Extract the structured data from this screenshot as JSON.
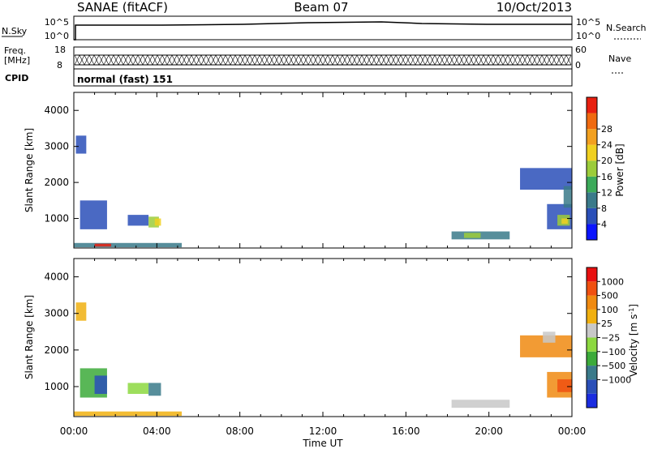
{
  "header": {
    "station": "SANAE (fitACF)",
    "beam": "Beam 07",
    "date": "10/Oct/2013"
  },
  "noise_panel": {
    "left_label": "N.Sky",
    "right_label": "N.Search",
    "left_ticks": [
      "10^5",
      "10^0"
    ],
    "right_ticks": [
      "10^5",
      "10^0"
    ]
  },
  "freq_panel": {
    "left_label_line1": "Freq.",
    "left_label_line2": "[MHz]",
    "right_label": "Nave",
    "left_ticks": [
      "18",
      "8"
    ],
    "right_ticks": [
      "60",
      "0"
    ]
  },
  "cpid_panel": {
    "label": "CPID",
    "value": "normal (fast) 151"
  },
  "chart_data": [
    {
      "type": "heatmap",
      "name": "power",
      "ylabel": "Slant Range [km]",
      "yticks": [
        1000,
        2000,
        3000,
        4000
      ],
      "ylim": [
        180,
        4500
      ],
      "xlim": [
        0,
        24
      ],
      "colorbar": {
        "label": "Power [dB]",
        "ticks": [
          "4",
          "8",
          "12",
          "16",
          "20",
          "24",
          "28"
        ],
        "colors": [
          "#0a14ff",
          "#2a4fb8",
          "#3a7a8a",
          "#3caa5a",
          "#9ccc3a",
          "#f0d020",
          "#f2a020",
          "#f06a10",
          "#e82010"
        ]
      },
      "regions": [
        {
          "t0": 0.1,
          "t1": 0.6,
          "r0": 2800,
          "r1": 3300,
          "color": "#2a4fb8"
        },
        {
          "t0": 0.3,
          "t1": 1.6,
          "r0": 700,
          "r1": 1500,
          "color": "#2a4fb8"
        },
        {
          "t0": 2.6,
          "t1": 3.6,
          "r0": 800,
          "r1": 1100,
          "color": "#2a4fb8"
        },
        {
          "t0": 3.6,
          "t1": 4.1,
          "r0": 750,
          "r1": 1050,
          "color": "#9ccc3a"
        },
        {
          "t0": 3.9,
          "t1": 4.2,
          "r0": 800,
          "r1": 1000,
          "color": "#f0d020"
        },
        {
          "t0": 0.0,
          "t1": 5.2,
          "r0": 200,
          "r1": 320,
          "color": "#3a7a8a"
        },
        {
          "t0": 1.0,
          "t1": 1.8,
          "r0": 220,
          "r1": 300,
          "color": "#e82010"
        },
        {
          "t0": 18.2,
          "t1": 21.0,
          "r0": 420,
          "r1": 640,
          "color": "#3a7a8a"
        },
        {
          "t0": 18.8,
          "t1": 19.6,
          "r0": 460,
          "r1": 600,
          "color": "#9ccc3a"
        },
        {
          "t0": 21.5,
          "t1": 24.0,
          "r0": 1800,
          "r1": 2400,
          "color": "#2a4fb8"
        },
        {
          "t0": 22.8,
          "t1": 24.0,
          "r0": 700,
          "r1": 1400,
          "color": "#2a4fb8"
        },
        {
          "t0": 23.3,
          "t1": 23.9,
          "r0": 800,
          "r1": 1100,
          "color": "#9ccc3a"
        },
        {
          "t0": 23.5,
          "t1": 23.8,
          "r0": 850,
          "r1": 1000,
          "color": "#f0d020"
        },
        {
          "t0": 23.6,
          "t1": 24.0,
          "r0": 1300,
          "r1": 1900,
          "color": "#3a7a8a"
        }
      ]
    },
    {
      "type": "heatmap",
      "name": "velocity",
      "ylabel": "Slant Range [km]",
      "yticks": [
        1000,
        2000,
        3000,
        4000
      ],
      "ylim": [
        180,
        4500
      ],
      "xlim": [
        0,
        24
      ],
      "xticks": [
        "00:00",
        "04:00",
        "08:00",
        "12:00",
        "16:00",
        "20:00",
        "00:00"
      ],
      "xlabel": "Time UT",
      "colorbar": {
        "label": "Velocity [m s",
        "label_sup": "-1",
        "label_end": "]",
        "ticks": [
          "1000",
          "500",
          "100",
          "25",
          "-25",
          "-100",
          "-500",
          "-1000"
        ],
        "colors": [
          "#1a2ce0",
          "#2a4fb8",
          "#3a7a8a",
          "#3caa3a",
          "#8cd840",
          "#c8c8c8",
          "#f0b010",
          "#f08a10",
          "#f05010",
          "#e81010"
        ]
      },
      "regions": [
        {
          "t0": 0.1,
          "t1": 0.6,
          "r0": 2800,
          "r1": 3300,
          "color": "#f0b010"
        },
        {
          "t0": 0.3,
          "t1": 1.6,
          "r0": 700,
          "r1": 1500,
          "color": "#3caa3a"
        },
        {
          "t0": 1.0,
          "t1": 1.6,
          "r0": 800,
          "r1": 1300,
          "color": "#2a4fb8"
        },
        {
          "t0": 2.6,
          "t1": 3.6,
          "r0": 800,
          "r1": 1100,
          "color": "#8cd840"
        },
        {
          "t0": 3.6,
          "t1": 4.2,
          "r0": 750,
          "r1": 1100,
          "color": "#3a7a8a"
        },
        {
          "t0": 0.0,
          "t1": 5.2,
          "r0": 200,
          "r1": 320,
          "color": "#f0b010"
        },
        {
          "t0": 18.2,
          "t1": 21.0,
          "r0": 420,
          "r1": 640,
          "color": "#c8c8c8"
        },
        {
          "t0": 21.5,
          "t1": 24.0,
          "r0": 1800,
          "r1": 2400,
          "color": "#f08a10"
        },
        {
          "t0": 22.8,
          "t1": 24.0,
          "r0": 700,
          "r1": 1400,
          "color": "#f08a10"
        },
        {
          "t0": 23.3,
          "t1": 24.0,
          "r0": 850,
          "r1": 1200,
          "color": "#f05010"
        },
        {
          "t0": 22.6,
          "t1": 23.2,
          "r0": 2200,
          "r1": 2500,
          "color": "#c8c8c8"
        }
      ]
    }
  ]
}
